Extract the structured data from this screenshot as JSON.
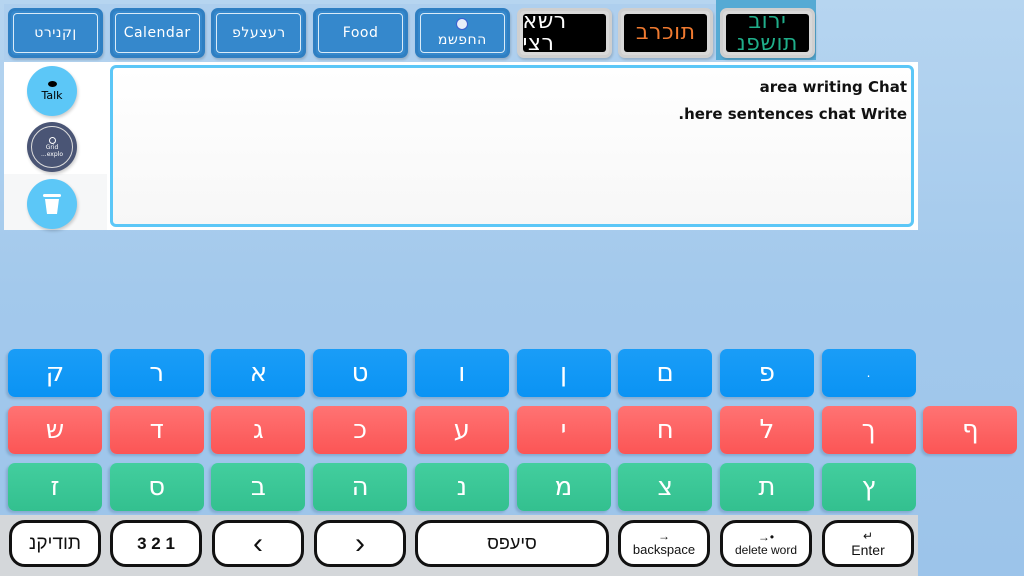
{
  "top_bar": {
    "categories": [
      {
        "label": "טרינקן",
        "style": "blue",
        "rtl": true
      },
      {
        "label": "Calendar",
        "style": "blue"
      },
      {
        "label": "פלעצער",
        "style": "blue",
        "rtl": true
      },
      {
        "label": "Food",
        "style": "blue"
      },
      {
        "label": "משפחה",
        "style": "blue",
        "rtl": true,
        "icon": "family-icon"
      },
      {
        "label": "אשר יצר",
        "style": "dark",
        "color": "#ffffff",
        "rtl": true
      },
      {
        "label": "ברכות",
        "style": "dark",
        "color": "#f07a30",
        "rtl": true
      },
      {
        "label_lines": [
          "בורי",
          "נפשות"
        ],
        "style": "dark",
        "color": "#1fae8a",
        "rtl": true,
        "selected": true
      }
    ]
  },
  "side": {
    "talk_label": "Talk",
    "grid_label_1": "Grid",
    "grid_label_2": "...explo"
  },
  "chat": {
    "line1": "area writing Chat",
    "line2": ".here sentences chat Write"
  },
  "keyboard": {
    "colors": {
      "blue": "#0a93f4",
      "red": "#fb5555",
      "green": "#33c08f"
    },
    "rows": [
      {
        "color": "blue",
        "keys": [
          "ק",
          "ר",
          "א",
          "ט",
          "ו",
          "ן",
          "ם",
          "פ",
          "."
        ]
      },
      {
        "color": "red",
        "keys": [
          "ש",
          "ד",
          "ג",
          "כ",
          "ע",
          "י",
          "ח",
          "ל",
          "ך",
          "ף"
        ]
      },
      {
        "color": "green",
        "keys": [
          "ז",
          "ס",
          "ב",
          "ה",
          "נ",
          "מ",
          "צ",
          "ת",
          "ץ"
        ]
      }
    ]
  },
  "bottom": {
    "nikud": "נקידות",
    "numbers": "3 2 1",
    "left": "‹",
    "right": "›",
    "space": "ספעיס",
    "backspace": "backspace",
    "delete_word": "delete word",
    "enter": "Enter"
  }
}
